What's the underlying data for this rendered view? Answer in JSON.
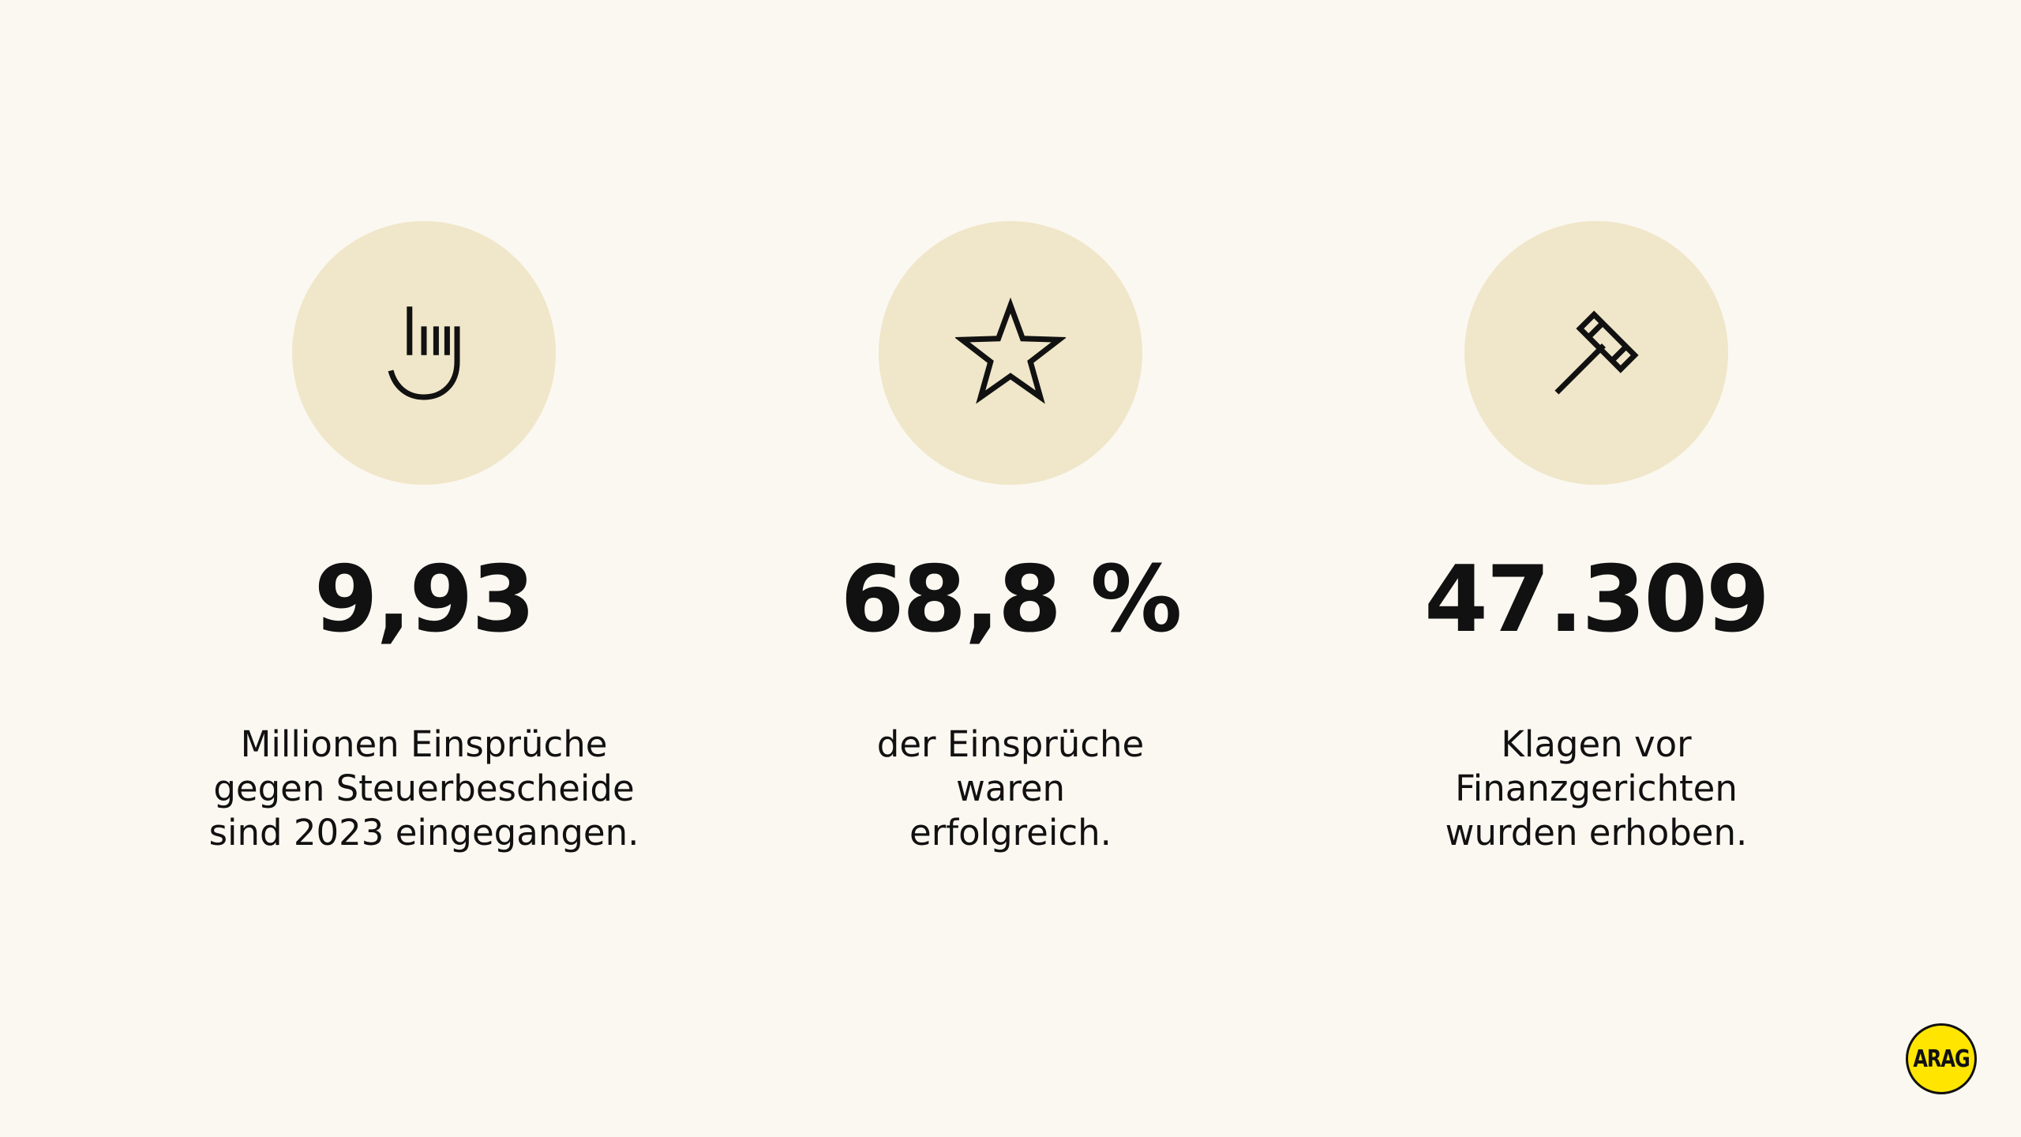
{
  "stats": [
    {
      "icon": "hand-pointer-icon",
      "value": "9,93",
      "caption": [
        "Millionen Einsprüche",
        "gegen Steuerbescheide",
        "sind 2023 eingegangen."
      ]
    },
    {
      "icon": "star-icon",
      "value": "68,8 %",
      "caption": [
        "der Einsprüche",
        "waren",
        "erfolgreich."
      ]
    },
    {
      "icon": "gavel-icon",
      "value": "47.309",
      "caption": [
        "Klagen vor",
        "Finanzgerichten",
        "wurden erhoben."
      ]
    }
  ],
  "logo": {
    "text": "ARAG"
  },
  "colors": {
    "background": "#fbf8f1",
    "icon_circle": "#f0e6c9",
    "text": "#111111",
    "logo_fill": "#ffe500"
  }
}
